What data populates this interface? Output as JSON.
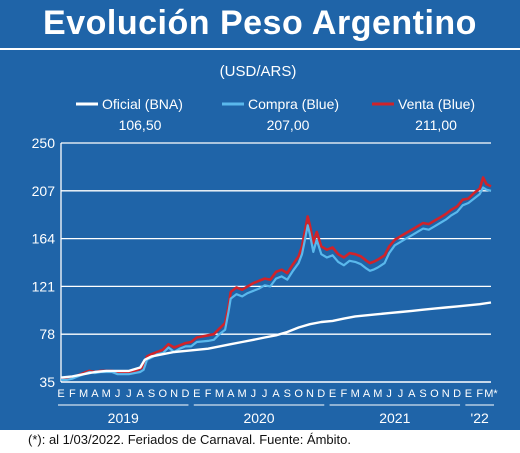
{
  "title": "Evolución Peso Argentino",
  "footnote": "(*): al 1/03/2022. Feriados de Carnaval. Fuente: Ámbito.",
  "colors": {
    "background": "#1f64a8",
    "oficial": "#ffffff",
    "compra": "#5ab8ec",
    "venta": "#d0232a",
    "grid": "#ffffff"
  },
  "chart_data": {
    "type": "line",
    "subtitle": "(USD/ARS)",
    "yticks": [
      "250",
      "207",
      "164",
      "121",
      "78",
      "35"
    ],
    "ylim": [
      35,
      250
    ],
    "month_labels": [
      "E",
      "F",
      "M",
      "A",
      "M",
      "J",
      "J",
      "A",
      "S",
      "O",
      "N",
      "D",
      "E",
      "F",
      "M",
      "A",
      "M",
      "J",
      "J",
      "A",
      "S",
      "O",
      "N",
      "D",
      "E",
      "F",
      "M",
      "A",
      "M",
      "J",
      "J",
      "A",
      "S",
      "O",
      "N",
      "D",
      "E",
      "F",
      "M*"
    ],
    "year_labels": [
      "2019",
      "2020",
      "2021",
      "'22"
    ],
    "legend": [
      {
        "name": "Oficial (BNA)",
        "last_value": "106,50",
        "color": "#ffffff"
      },
      {
        "name": "Compra (Blue)",
        "last_value": "207,00",
        "color": "#5ab8ec"
      },
      {
        "name": "Venta (Blue)",
        "last_value": "211,00",
        "color": "#d0232a"
      }
    ],
    "series": [
      {
        "name": "Oficial (BNA)",
        "points": [
          [
            0,
            39
          ],
          [
            1,
            40
          ],
          [
            2,
            42
          ],
          [
            3,
            44
          ],
          [
            4,
            45
          ],
          [
            5,
            45
          ],
          [
            6,
            45
          ],
          [
            7,
            48
          ],
          [
            7.4,
            55
          ],
          [
            8,
            58
          ],
          [
            9,
            60
          ],
          [
            10,
            62
          ],
          [
            11,
            63
          ],
          [
            12,
            64
          ],
          [
            13,
            65
          ],
          [
            14,
            67
          ],
          [
            15,
            69
          ],
          [
            16,
            71
          ],
          [
            17,
            73
          ],
          [
            18,
            75
          ],
          [
            19,
            77
          ],
          [
            20,
            80
          ],
          [
            21,
            84
          ],
          [
            22,
            87
          ],
          [
            23,
            89
          ],
          [
            24,
            90
          ],
          [
            25,
            92
          ],
          [
            26,
            94
          ],
          [
            27,
            95
          ],
          [
            28,
            96
          ],
          [
            29,
            97
          ],
          [
            30,
            98
          ],
          [
            31,
            99
          ],
          [
            32,
            100
          ],
          [
            33,
            101
          ],
          [
            34,
            102
          ],
          [
            35,
            103
          ],
          [
            36,
            104
          ],
          [
            37,
            105
          ],
          [
            38,
            106.5
          ]
        ]
      },
      {
        "name": "Compra (Blue)",
        "points": [
          [
            0,
            37
          ],
          [
            0.5,
            37
          ],
          [
            1,
            38
          ],
          [
            1.5,
            40
          ],
          [
            2,
            42
          ],
          [
            2.5,
            44
          ],
          [
            3,
            43
          ],
          [
            3.5,
            44
          ],
          [
            4,
            44
          ],
          [
            4.5,
            44
          ],
          [
            5,
            42
          ],
          [
            5.5,
            42
          ],
          [
            6,
            42
          ],
          [
            6.5,
            43
          ],
          [
            7,
            44
          ],
          [
            7.3,
            46
          ],
          [
            7.6,
            55
          ],
          [
            8,
            57
          ],
          [
            8.5,
            60
          ],
          [
            9,
            61
          ],
          [
            9.5,
            66
          ],
          [
            10,
            62
          ],
          [
            10.5,
            65
          ],
          [
            11,
            67
          ],
          [
            11.5,
            67
          ],
          [
            12,
            71
          ],
          [
            13,
            72
          ],
          [
            13.5,
            73
          ],
          [
            14,
            78
          ],
          [
            14.5,
            82
          ],
          [
            14.8,
            98
          ],
          [
            15,
            110
          ],
          [
            15.5,
            114
          ],
          [
            16,
            112
          ],
          [
            16.5,
            115
          ],
          [
            17,
            117
          ],
          [
            17.5,
            119
          ],
          [
            18,
            122
          ],
          [
            18.5,
            121
          ],
          [
            19,
            128
          ],
          [
            19.5,
            130
          ],
          [
            20,
            127
          ],
          [
            20.5,
            135
          ],
          [
            21,
            142
          ],
          [
            21.3,
            150
          ],
          [
            21.5,
            160
          ],
          [
            21.8,
            176
          ],
          [
            22,
            168
          ],
          [
            22.3,
            152
          ],
          [
            22.6,
            163
          ],
          [
            23,
            150
          ],
          [
            23.5,
            147
          ],
          [
            24,
            149
          ],
          [
            24.5,
            143
          ],
          [
            25,
            140
          ],
          [
            25.5,
            144
          ],
          [
            26,
            143
          ],
          [
            26.5,
            141
          ],
          [
            27,
            137
          ],
          [
            27.3,
            135
          ],
          [
            27.6,
            136
          ],
          [
            28,
            138
          ],
          [
            28.3,
            140
          ],
          [
            28.6,
            142
          ],
          [
            29,
            151
          ],
          [
            29.5,
            158
          ],
          [
            30,
            161
          ],
          [
            30.5,
            164
          ],
          [
            31,
            167
          ],
          [
            31.5,
            170
          ],
          [
            32,
            173
          ],
          [
            32.5,
            172
          ],
          [
            33,
            175
          ],
          [
            33.5,
            178
          ],
          [
            34,
            181
          ],
          [
            34.5,
            185
          ],
          [
            35,
            188
          ],
          [
            35.5,
            194
          ],
          [
            36,
            196
          ],
          [
            36.5,
            200
          ],
          [
            37,
            204
          ],
          [
            37.3,
            210
          ],
          [
            37.6,
            208
          ],
          [
            38,
            207
          ]
        ]
      },
      {
        "name": "Venta (Blue)",
        "points": [
          [
            0,
            38
          ],
          [
            0.5,
            38
          ],
          [
            1,
            39
          ],
          [
            1.5,
            41
          ],
          [
            2,
            43
          ],
          [
            2.5,
            45
          ],
          [
            3,
            44
          ],
          [
            3.5,
            45
          ],
          [
            4,
            45
          ],
          [
            4.5,
            45
          ],
          [
            5,
            44
          ],
          [
            5.5,
            44
          ],
          [
            6,
            44
          ],
          [
            6.5,
            45
          ],
          [
            7,
            47
          ],
          [
            7.3,
            49
          ],
          [
            7.6,
            58
          ],
          [
            8,
            60
          ],
          [
            8.5,
            62
          ],
          [
            9,
            64
          ],
          [
            9.5,
            69
          ],
          [
            10,
            66
          ],
          [
            10.5,
            68
          ],
          [
            11,
            70
          ],
          [
            11.5,
            71
          ],
          [
            12,
            75
          ],
          [
            13,
            77
          ],
          [
            13.5,
            78
          ],
          [
            14,
            83
          ],
          [
            14.5,
            88
          ],
          [
            14.8,
            103
          ],
          [
            15,
            116
          ],
          [
            15.5,
            120
          ],
          [
            16,
            118
          ],
          [
            16.5,
            121
          ],
          [
            17,
            124
          ],
          [
            17.5,
            126
          ],
          [
            18,
            128
          ],
          [
            18.5,
            127
          ],
          [
            19,
            134
          ],
          [
            19.5,
            136
          ],
          [
            20,
            133
          ],
          [
            20.5,
            141
          ],
          [
            21,
            148
          ],
          [
            21.3,
            157
          ],
          [
            21.5,
            168
          ],
          [
            21.8,
            184
          ],
          [
            22,
            176
          ],
          [
            22.3,
            160
          ],
          [
            22.6,
            170
          ],
          [
            23,
            157
          ],
          [
            23.5,
            154
          ],
          [
            24,
            156
          ],
          [
            24.5,
            150
          ],
          [
            25,
            147
          ],
          [
            25.5,
            151
          ],
          [
            26,
            150
          ],
          [
            26.5,
            148
          ],
          [
            27,
            144
          ],
          [
            27.3,
            142
          ],
          [
            27.6,
            143
          ],
          [
            28,
            145
          ],
          [
            28.3,
            147
          ],
          [
            28.6,
            149
          ],
          [
            29,
            157
          ],
          [
            29.5,
            163
          ],
          [
            30,
            166
          ],
          [
            30.5,
            169
          ],
          [
            31,
            172
          ],
          [
            31.5,
            175
          ],
          [
            32,
            178
          ],
          [
            32.5,
            177
          ],
          [
            33,
            180
          ],
          [
            33.5,
            183
          ],
          [
            34,
            186
          ],
          [
            34.5,
            190
          ],
          [
            35,
            193
          ],
          [
            35.5,
            199
          ],
          [
            36,
            200
          ],
          [
            36.5,
            205
          ],
          [
            37,
            209
          ],
          [
            37.3,
            219
          ],
          [
            37.6,
            213
          ],
          [
            38,
            211
          ]
        ]
      }
    ]
  }
}
